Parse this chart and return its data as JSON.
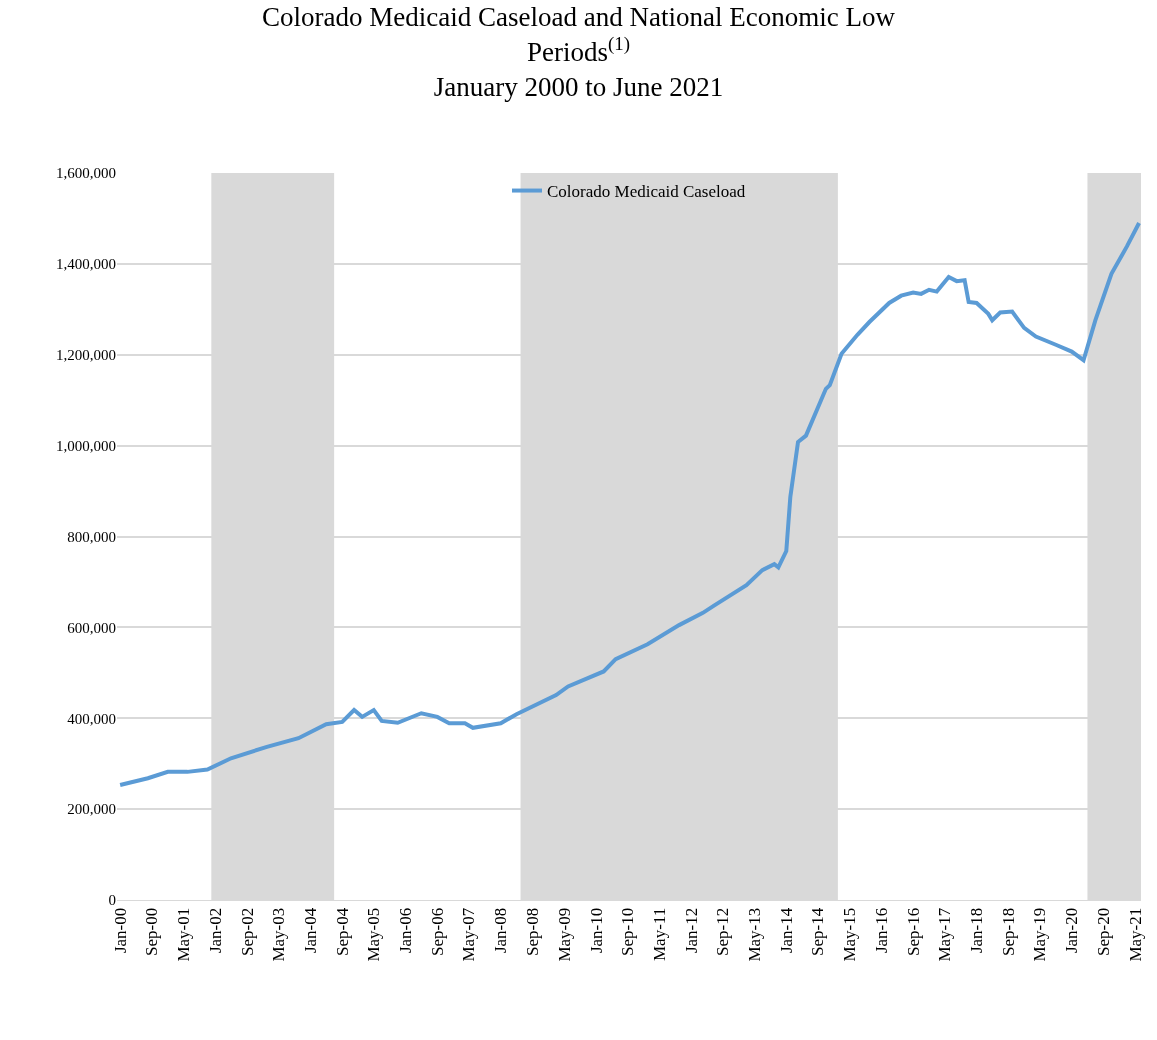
{
  "chart_data": {
    "type": "line",
    "title": "Colorado Medicaid Caseload and National Economic Low\nPeriods$^{(1)}$\nJanuary 2000 to June 2021",
    "series": [
      {
        "name": "Colorado Medicaid Caseload",
        "color": "#5b9bd5",
        "x": [
          "2000-01",
          "2000-08",
          "2001-01",
          "2001-06",
          "2001-11",
          "2002-05",
          "2003-02",
          "2003-10",
          "2004-05",
          "2004-09",
          "2004-12",
          "2005-02",
          "2005-05",
          "2005-07",
          "2005-11",
          "2006-05",
          "2006-09",
          "2006-12",
          "2007-04",
          "2007-06",
          "2008-01",
          "2008-05",
          "2009-03",
          "2009-06",
          "2010-03",
          "2010-06",
          "2011-02",
          "2011-10",
          "2012-04",
          "2012-07",
          "2013-03",
          "2013-07",
          "2013-10",
          "2013-11",
          "2014-01",
          "2014-02",
          "2014-04",
          "2014-06",
          "2014-11",
          "2014-12",
          "2015-03",
          "2015-07",
          "2015-10",
          "2016-03",
          "2016-06",
          "2016-09",
          "2016-11",
          "2017-01",
          "2017-03",
          "2017-06",
          "2017-08",
          "2017-10",
          "2017-11",
          "2018-01",
          "2018-04",
          "2018-05",
          "2018-07",
          "2018-10",
          "2019-01",
          "2019-04",
          "2019-09",
          "2020-01",
          "2020-04",
          "2020-05",
          "2020-07",
          "2020-11",
          "2021-03",
          "2021-06"
        ],
        "values": [
          253000,
          268000,
          282000,
          282000,
          287000,
          312000,
          337000,
          356000,
          387000,
          392000,
          418000,
          403000,
          418000,
          394000,
          390000,
          411000,
          403000,
          389000,
          389000,
          379000,
          389000,
          409000,
          451000,
          470000,
          503000,
          530000,
          563000,
          605000,
          632000,
          649000,
          693000,
          726000,
          739000,
          732000,
          768000,
          887000,
          1008000,
          1022000,
          1125000,
          1133000,
          1202000,
          1244000,
          1272000,
          1314000,
          1330000,
          1337000,
          1334000,
          1343000,
          1339000,
          1371000,
          1362000,
          1364000,
          1316000,
          1314000,
          1290000,
          1276000,
          1293000,
          1295000,
          1259000,
          1240000,
          1222000,
          1207000,
          1188000,
          1217000,
          1276000,
          1378000,
          1439000,
          1490000
        ]
      }
    ],
    "bands": [
      {
        "axis": "x",
        "from": "2001-12",
        "to": "2004-07",
        "color": "#d9d9d9"
      },
      {
        "axis": "x",
        "from": "2008-06",
        "to": "2015-02",
        "color": "#d9d9d9"
      },
      {
        "axis": "x",
        "from": "2020-05",
        "to": "2021-06-16",
        "color": "#d9d9d9"
      }
    ],
    "xlim": [
      "1999-12-08",
      "2021-06-16"
    ],
    "xticks": [
      {
        "value": "2000-01",
        "label": "Jan-00"
      },
      {
        "value": "2000-09",
        "label": "Sep-00"
      },
      {
        "value": "2001-05",
        "label": "May-01"
      },
      {
        "value": "2002-01",
        "label": "Jan-02"
      },
      {
        "value": "2002-09",
        "label": "Sep-02"
      },
      {
        "value": "2003-05",
        "label": "May-03"
      },
      {
        "value": "2004-01",
        "label": "Jan-04"
      },
      {
        "value": "2004-09",
        "label": "Sep-04"
      },
      {
        "value": "2005-05",
        "label": "May-05"
      },
      {
        "value": "2006-01",
        "label": "Jan-06"
      },
      {
        "value": "2006-09",
        "label": "Sep-06"
      },
      {
        "value": "2007-05",
        "label": "May-07"
      },
      {
        "value": "2008-01",
        "label": "Jan-08"
      },
      {
        "value": "2008-09",
        "label": "Sep-08"
      },
      {
        "value": "2009-05",
        "label": "May-09"
      },
      {
        "value": "2010-01",
        "label": "Jan-10"
      },
      {
        "value": "2010-09",
        "label": "Sep-10"
      },
      {
        "value": "2011-05",
        "label": "May-11"
      },
      {
        "value": "2012-01",
        "label": "Jan-12"
      },
      {
        "value": "2012-09",
        "label": "Sep-12"
      },
      {
        "value": "2013-05",
        "label": "May-13"
      },
      {
        "value": "2014-01",
        "label": "Jan-14"
      },
      {
        "value": "2014-09",
        "label": "Sep-14"
      },
      {
        "value": "2015-05",
        "label": "May-15"
      },
      {
        "value": "2016-01",
        "label": "Jan-16"
      },
      {
        "value": "2016-09",
        "label": "Sep-16"
      },
      {
        "value": "2017-05",
        "label": "May-17"
      },
      {
        "value": "2018-01",
        "label": "Jan-18"
      },
      {
        "value": "2018-09",
        "label": "Sep-18"
      },
      {
        "value": "2019-05",
        "label": "May-19"
      },
      {
        "value": "2020-01",
        "label": "Jan-20"
      },
      {
        "value": "2020-09",
        "label": "Sep-20"
      },
      {
        "value": "2021-05",
        "label": "May-21"
      }
    ],
    "ylim": [
      0,
      1600000
    ],
    "yticks": [
      0,
      {
        "value": 200000,
        "label": "200,000"
      },
      {
        "value": 400000,
        "label": "400,000"
      },
      {
        "value": 600000,
        "label": "600,000"
      },
      {
        "value": 800000,
        "label": "800,000"
      },
      {
        "value": 1000000,
        "label": "1,000,000"
      },
      {
        "value": 1200000,
        "label": "1,200,000"
      },
      {
        "value": 1400000,
        "label": "1,400,000"
      },
      {
        "value": 1600000,
        "label": "1,600,000"
      }
    ],
    "grid": "y",
    "legend": "top",
    "marker": "none",
    "line_style": "solid"
  }
}
